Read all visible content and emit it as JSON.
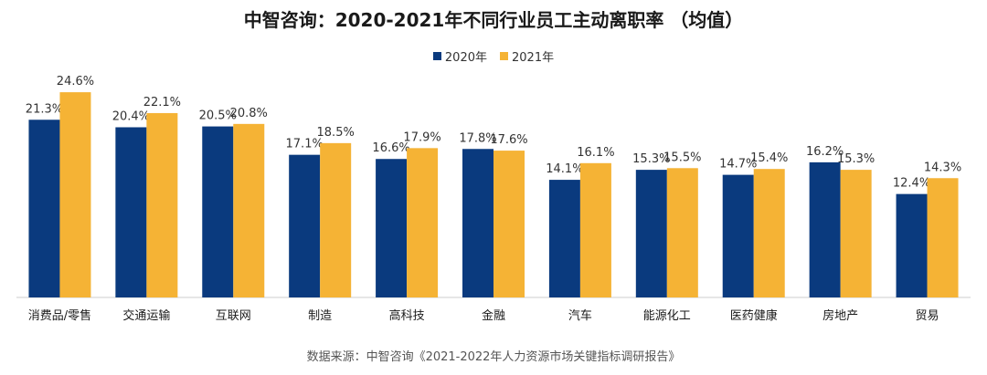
{
  "colors": {
    "series_2020": "#0a3a7e",
    "series_2021": "#f5b335",
    "axis": "#cccccc"
  },
  "chart_data": {
    "type": "bar",
    "title": "中智咨询：2020-2021年不同行业员工主动离职率 （均值）",
    "categories": [
      "消费品/零售",
      "交通运输",
      "互联网",
      "制造",
      "高科技",
      "金融",
      "汽车",
      "能源化工",
      "医药健康",
      "房地产",
      "贸易"
    ],
    "series": [
      {
        "name": "2020年",
        "values": [
          21.3,
          20.4,
          20.5,
          17.1,
          16.6,
          17.8,
          14.1,
          15.3,
          14.7,
          16.2,
          12.4
        ],
        "labels": [
          "21.3%",
          "20.4%",
          "20.5%",
          "17.1%",
          "16.6%",
          "17.8%",
          "14.1%",
          "15.3%",
          "14.7%",
          "16.2%",
          "12.4%"
        ]
      },
      {
        "name": "2021年",
        "values": [
          24.6,
          22.1,
          20.8,
          18.5,
          17.9,
          17.6,
          16.1,
          15.5,
          15.4,
          15.3,
          14.3
        ],
        "labels": [
          "24.6%",
          "22.1%",
          "20.8%",
          "18.5%",
          "17.9%",
          "17.6%",
          "16.1%",
          "15.5%",
          "15.4%",
          "15.3%",
          "14.3%"
        ]
      }
    ],
    "ylim": [
      0,
      28
    ],
    "legend_position": "top-center"
  },
  "source_note": "数据来源：中智咨询《2021-2022年人力资源市场关键指标调研报告》"
}
